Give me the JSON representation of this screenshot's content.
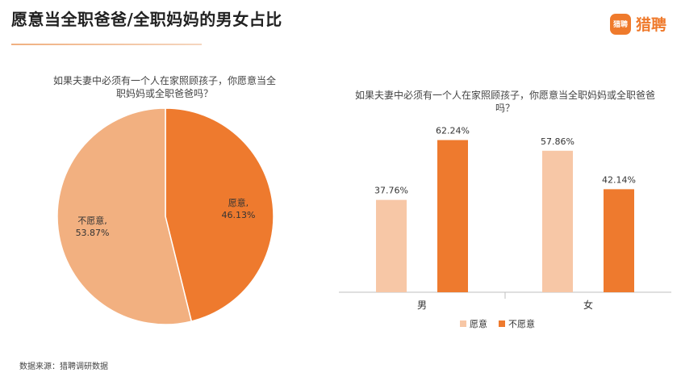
{
  "header": {
    "title": "愿意当全职爸爸/全职妈妈的男女占比",
    "logo_mark": "猎聘",
    "logo_text": "猎聘",
    "logo_icon": "brand-logo-icon"
  },
  "footer": {
    "source": "数据来源：猎聘调研数据"
  },
  "colors": {
    "accent": "#ef7a2c",
    "light": "#f5c4a2",
    "pie_light": "#f2b080"
  },
  "chart_data": [
    {
      "type": "pie",
      "title": "如果夫妻中必须有一个人在家照顾孩子，你愿意当全职妈妈或全职爸爸吗？",
      "slices": [
        {
          "label": "愿意,",
          "value": 46.13,
          "value_label": "46.13%",
          "color": "#ee7a2e"
        },
        {
          "label": "不愿意,",
          "value": 53.87,
          "value_label": "53.87%",
          "color": "#f2b080"
        }
      ]
    },
    {
      "type": "bar",
      "title": "如果夫妻中必须有一个人在家照顾孩子，你愿意当全职妈妈或全职爸爸吗？",
      "categories": [
        "男",
        "女"
      ],
      "ylim": [
        0,
        70
      ],
      "legend_position": "bottom",
      "series": [
        {
          "name": "愿意",
          "values": [
            37.76,
            57.86
          ],
          "value_labels": [
            "37.76%",
            "57.86%"
          ],
          "color": "#f7c7a6"
        },
        {
          "name": "不愿意",
          "values": [
            62.24,
            42.14
          ],
          "value_labels": [
            "62.24%",
            "42.14%"
          ],
          "color": "#ee7a2e"
        }
      ]
    }
  ]
}
